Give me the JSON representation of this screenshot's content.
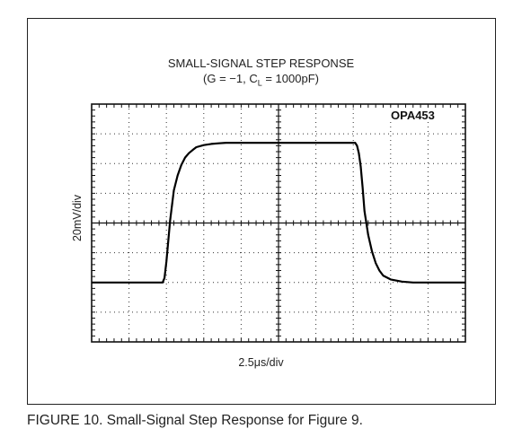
{
  "figure": {
    "title_line1": "SMALL-SIGNAL STEP RESPONSE",
    "title_line2_pre": "(G = −1, C",
    "title_line2_sub": "L",
    "title_line2_post": " = 1000pF)",
    "device_label": "OPA453",
    "caption": "FIGURE 10. Small-Signal Step Response for Figure 9."
  },
  "chart_data": {
    "type": "line",
    "title": "SMALL-SIGNAL STEP RESPONSE (G = −1, CL = 1000pF)",
    "xlabel": "2.5μs/div",
    "ylabel": "20mV/div",
    "xlim": [
      0,
      10
    ],
    "ylim": [
      -4,
      4
    ],
    "grid": true,
    "annotation": "OPA453",
    "series": [
      {
        "x": [
          0,
          1.9,
          1.95,
          2.0,
          2.05,
          2.1,
          2.2,
          2.3,
          2.4,
          2.5,
          2.6,
          2.7,
          2.8,
          3.0,
          3.2,
          3.4,
          3.6,
          4.0,
          5.0,
          6.0,
          7.0,
          6.9,
          6.95,
          7.0,
          7.05,
          7.1,
          7.15,
          7.2,
          7.25,
          7.3,
          7.4,
          7.5,
          7.6,
          7.7,
          7.8,
          8.0,
          8.3,
          8.6,
          9.0,
          10
        ],
        "y": [
          -2.0,
          -2.0,
          -1.85,
          -1.3,
          -0.6,
          0.1,
          1.1,
          1.6,
          1.95,
          2.2,
          2.35,
          2.45,
          2.55,
          2.62,
          2.66,
          2.68,
          2.7,
          2.7,
          2.7,
          2.7,
          2.7,
          2.7,
          2.7,
          2.7,
          2.7,
          2.6,
          2.35,
          1.9,
          1.2,
          0.4,
          -0.4,
          -0.95,
          -1.35,
          -1.6,
          -1.77,
          -1.9,
          -1.97,
          -2.0,
          -2.0,
          -2.0
        ]
      }
    ]
  }
}
